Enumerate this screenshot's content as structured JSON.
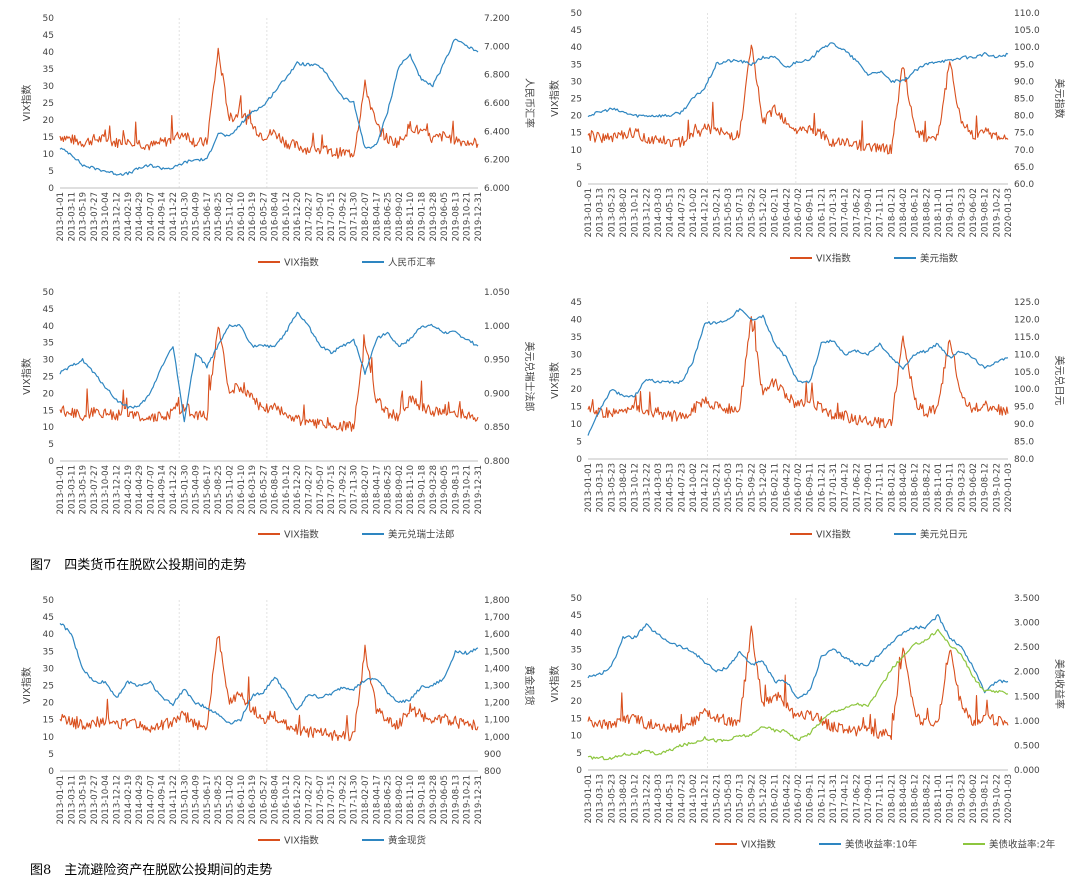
{
  "colors": {
    "vix": "#d9501e",
    "blue": "#2e86c1",
    "green": "#8dc63f",
    "axis": "#bfbfbf",
    "text": "#444444"
  },
  "captions": {
    "fig7": "图7　四类货币在脱欧公投期间的走势",
    "fig8": "图8　主流避险资产在脱欧公投期间的走势"
  },
  "chart_data": [
    {
      "id": "c1",
      "type": "line",
      "xlabel": "",
      "ylabel_left": "VIX指数",
      "ylabel_right": "人民币汇率",
      "ylim_left": [
        0,
        50
      ],
      "yticks_left": [
        "0",
        "5",
        "10",
        "15",
        "20",
        "25",
        "30",
        "35",
        "40",
        "45",
        "50"
      ],
      "ylim_right": [
        6.0,
        7.2
      ],
      "yticks_right": [
        "6.000",
        "6.200",
        "6.400",
        "6.600",
        "6.800",
        "7.000",
        "7.200"
      ],
      "dates": [
        "2013-01-01",
        "2013-03-11",
        "2013-05-19",
        "2013-07-27",
        "2013-10-04",
        "2013-12-12",
        "2014-02-19",
        "2014-04-29",
        "2014-07-07",
        "2014-09-14",
        "2014-11-22",
        "2015-01-30",
        "2015-04-09",
        "2015-06-17",
        "2015-08-25",
        "2015-11-02",
        "2016-01-10",
        "2016-03-19",
        "2016-05-27",
        "2016-08-04",
        "2016-10-12",
        "2016-12-20",
        "2017-02-27",
        "2017-05-07",
        "2017-07-15",
        "2017-09-22",
        "2017-11-30",
        "2018-02-07",
        "2018-04-17",
        "2018-06-25",
        "2018-09-02",
        "2018-11-10",
        "2019-01-18",
        "2019-03-28",
        "2019-06-05",
        "2019-08-13",
        "2019-10-21",
        "2019-12-31"
      ],
      "series": [
        {
          "name": "VIX指数",
          "axis": "left",
          "color": "vix",
          "values": [
            15,
            14,
            13,
            14,
            14,
            13,
            14,
            13,
            12,
            13,
            14,
            16,
            13,
            13,
            40,
            20,
            22,
            18,
            15,
            16,
            13,
            12,
            11,
            11,
            10,
            10,
            10,
            30,
            18,
            14,
            13,
            18,
            16,
            14,
            15,
            14,
            13,
            13
          ]
        },
        {
          "name": "人民币汇率",
          "axis": "right",
          "color": "blue",
          "values": [
            6.28,
            6.24,
            6.16,
            6.14,
            6.12,
            6.1,
            6.1,
            6.14,
            6.16,
            6.14,
            6.14,
            6.18,
            6.2,
            6.2,
            6.39,
            6.36,
            6.45,
            6.54,
            6.58,
            6.68,
            6.78,
            6.88,
            6.87,
            6.86,
            6.76,
            6.64,
            6.6,
            6.28,
            6.3,
            6.54,
            6.86,
            6.94,
            6.76,
            6.72,
            6.88,
            7.06,
            7.0,
            6.96
          ]
        }
      ],
      "legend": [
        "VIX指数",
        "人民币汇率"
      ]
    },
    {
      "id": "c2",
      "type": "line",
      "ylabel_left": "VIX指数",
      "ylabel_right": "美元指数",
      "ylim_left": [
        0,
        50
      ],
      "yticks_left": [
        "0",
        "5",
        "10",
        "15",
        "20",
        "25",
        "30",
        "35",
        "40",
        "45",
        "50"
      ],
      "ylim_right": [
        60,
        110
      ],
      "yticks_right": [
        "60.0",
        "65.0",
        "70.0",
        "75.0",
        "80.0",
        "85.0",
        "90.0",
        "95.0",
        "100.0",
        "105.0",
        "110.0"
      ],
      "dates": [
        "2013-01-01",
        "2013-03-13",
        "2013-05-23",
        "2013-08-02",
        "2013-10-12",
        "2013-12-22",
        "2014-03-03",
        "2014-05-13",
        "2014-07-23",
        "2014-10-02",
        "2014-12-12",
        "2015-02-21",
        "2015-05-03",
        "2015-07-13",
        "2015-09-22",
        "2015-12-02",
        "2016-02-11",
        "2016-04-22",
        "2016-07-02",
        "2016-09-11",
        "2016-11-21",
        "2017-01-31",
        "2017-04-12",
        "2017-06-22",
        "2017-09-01",
        "2017-11-11",
        "2018-01-21",
        "2018-04-02",
        "2018-06-12",
        "2018-08-22",
        "2018-11-01",
        "2019-01-11",
        "2019-03-23",
        "2019-06-02",
        "2019-08-12",
        "2019-10-22",
        "2020-01-03"
      ],
      "series": [
        {
          "name": "VIX指数",
          "axis": "left",
          "color": "vix",
          "values": [
            14,
            13,
            13,
            14,
            15,
            13,
            13,
            12,
            12,
            14,
            16,
            15,
            14,
            14,
            40,
            18,
            22,
            18,
            15,
            16,
            14,
            12,
            12,
            11,
            11,
            10,
            10,
            35,
            16,
            13,
            14,
            35,
            18,
            14,
            15,
            14,
            13
          ]
        },
        {
          "name": "美元指数",
          "axis": "right",
          "color": "blue",
          "values": [
            80,
            81,
            82,
            81,
            80,
            80,
            80,
            80,
            81,
            85,
            88,
            95,
            96,
            96,
            95,
            97,
            97,
            94,
            96,
            96,
            100,
            101,
            99,
            96,
            92,
            93,
            90,
            90,
            93,
            95,
            96,
            96,
            97,
            97,
            98,
            97,
            98
          ]
        }
      ],
      "legend": [
        "VIX指数",
        "美元指数"
      ]
    },
    {
      "id": "c3",
      "type": "line",
      "ylabel_left": "VIX指数",
      "ylabel_right": "美元兑瑞士法郎",
      "ylim_left": [
        0,
        50
      ],
      "yticks_left": [
        "0",
        "5",
        "10",
        "15",
        "20",
        "25",
        "30",
        "35",
        "40",
        "45",
        "50"
      ],
      "ylim_right": [
        0.8,
        1.05
      ],
      "yticks_right": [
        "0.800",
        "0.850",
        "0.900",
        "0.950",
        "1.000",
        "1.050"
      ],
      "dates": [
        "2013-01-01",
        "2013-03-11",
        "2013-05-19",
        "2013-07-27",
        "2013-10-04",
        "2013-12-12",
        "2014-02-19",
        "2014-04-29",
        "2014-07-07",
        "2014-09-14",
        "2014-11-22",
        "2015-01-30",
        "2015-04-09",
        "2015-06-17",
        "2015-08-25",
        "2015-11-02",
        "2016-01-10",
        "2016-03-19",
        "2016-05-27",
        "2016-08-04",
        "2016-10-12",
        "2016-12-20",
        "2017-02-27",
        "2017-05-07",
        "2017-07-15",
        "2017-09-22",
        "2017-11-30",
        "2018-02-07",
        "2018-04-17",
        "2018-06-25",
        "2018-09-02",
        "2018-11-10",
        "2019-01-18",
        "2019-03-28",
        "2019-06-05",
        "2019-08-13",
        "2019-10-21",
        "2019-12-31"
      ],
      "series": [
        {
          "name": "VIX指数",
          "axis": "left",
          "color": "vix",
          "values": [
            15,
            14,
            13,
            14,
            14,
            13,
            14,
            13,
            12,
            13,
            14,
            16,
            13,
            13,
            40,
            20,
            22,
            18,
            15,
            16,
            13,
            12,
            11,
            11,
            10,
            10,
            10,
            35,
            18,
            14,
            13,
            18,
            16,
            14,
            15,
            14,
            13,
            13
          ]
        },
        {
          "name": "美元兑瑞士法郎",
          "axis": "right",
          "color": "blue",
          "values": [
            0.93,
            0.94,
            0.95,
            0.93,
            0.91,
            0.89,
            0.88,
            0.88,
            0.9,
            0.94,
            0.97,
            0.86,
            0.96,
            0.94,
            0.97,
            1.0,
            1.0,
            0.97,
            0.97,
            0.97,
            0.99,
            1.02,
            1.0,
            0.97,
            0.96,
            0.97,
            0.98,
            0.93,
            0.98,
            0.99,
            0.97,
            0.98,
            1.0,
            1.0,
            0.99,
            0.99,
            0.98,
            0.97
          ]
        }
      ],
      "legend": [
        "VIX指数",
        "美元兑瑞士法郎"
      ]
    },
    {
      "id": "c4",
      "type": "line",
      "ylabel_left": "VIX指数",
      "ylabel_right": "美元兑日元",
      "ylim_left": [
        0,
        45
      ],
      "yticks_left": [
        "0",
        "5",
        "10",
        "15",
        "20",
        "25",
        "30",
        "35",
        "40",
        "45"
      ],
      "ylim_right": [
        80,
        125
      ],
      "yticks_right": [
        "80.0",
        "85.0",
        "90.0",
        "95.0",
        "100.0",
        "105.0",
        "110.0",
        "115.0",
        "120.0",
        "125.0"
      ],
      "dates": [
        "2013-01-01",
        "2013-03-13",
        "2013-05-23",
        "2013-08-02",
        "2013-10-12",
        "2013-12-22",
        "2014-03-03",
        "2014-05-13",
        "2014-07-23",
        "2014-10-02",
        "2014-12-12",
        "2015-02-21",
        "2015-05-03",
        "2015-07-13",
        "2015-09-22",
        "2015-12-02",
        "2016-02-11",
        "2016-04-22",
        "2016-07-02",
        "2016-09-11",
        "2016-11-21",
        "2017-01-31",
        "2017-04-12",
        "2017-06-22",
        "2017-09-01",
        "2017-11-11",
        "2018-01-21",
        "2018-04-02",
        "2018-06-12",
        "2018-08-22",
        "2018-11-01",
        "2019-01-11",
        "2019-03-23",
        "2019-06-02",
        "2019-08-12",
        "2019-10-22",
        "2020-01-03"
      ],
      "series": [
        {
          "name": "VIX指数",
          "axis": "left",
          "color": "vix",
          "values": [
            14,
            13,
            13,
            14,
            15,
            13,
            13,
            12,
            12,
            14,
            16,
            15,
            14,
            14,
            40,
            18,
            22,
            18,
            15,
            16,
            14,
            12,
            12,
            11,
            11,
            10,
            10,
            35,
            16,
            13,
            14,
            35,
            18,
            14,
            15,
            14,
            13
          ]
        },
        {
          "name": "美元兑日元",
          "axis": "right",
          "color": "blue",
          "values": [
            87,
            94,
            100,
            98,
            98,
            103,
            102,
            102,
            102,
            108,
            119,
            119,
            120,
            123,
            120,
            121,
            113,
            109,
            102,
            102,
            113,
            114,
            110,
            111,
            110,
            113,
            109,
            106,
            110,
            111,
            113,
            109,
            111,
            109,
            106,
            108,
            109
          ]
        }
      ],
      "legend": [
        "VIX指数",
        "美元兑日元"
      ]
    },
    {
      "id": "c5",
      "type": "line",
      "ylabel_left": "VIX指数",
      "ylabel_right": "黄金现货",
      "ylim_left": [
        0,
        50
      ],
      "yticks_left": [
        "0",
        "5",
        "10",
        "15",
        "20",
        "25",
        "30",
        "35",
        "40",
        "45",
        "50"
      ],
      "ylim_right": [
        800,
        1800
      ],
      "yticks_right": [
        "800",
        "900",
        "1,000",
        "1,100",
        "1,200",
        "1,300",
        "1,400",
        "1,500",
        "1,600",
        "1,700",
        "1,800"
      ],
      "dates": [
        "2013-01-01",
        "2013-03-11",
        "2013-05-19",
        "2013-07-27",
        "2013-10-04",
        "2013-12-12",
        "2014-02-19",
        "2014-04-29",
        "2014-07-07",
        "2014-09-14",
        "2014-11-22",
        "2015-01-30",
        "2015-04-09",
        "2015-06-17",
        "2015-08-25",
        "2015-11-02",
        "2016-01-10",
        "2016-03-19",
        "2016-05-27",
        "2016-08-04",
        "2016-10-12",
        "2016-12-20",
        "2017-02-27",
        "2017-05-07",
        "2017-07-15",
        "2017-09-22",
        "2017-11-30",
        "2018-02-07",
        "2018-04-17",
        "2018-06-25",
        "2018-09-02",
        "2018-11-10",
        "2019-01-18",
        "2019-03-28",
        "2019-06-05",
        "2019-08-13",
        "2019-10-21",
        "2019-12-31"
      ],
      "series": [
        {
          "name": "VIX指数",
          "axis": "left",
          "color": "vix",
          "values": [
            15,
            14,
            13,
            14,
            14,
            13,
            14,
            13,
            12,
            13,
            14,
            16,
            13,
            13,
            40,
            20,
            22,
            18,
            15,
            16,
            13,
            12,
            11,
            11,
            10,
            10,
            10,
            35,
            18,
            14,
            13,
            18,
            16,
            14,
            15,
            14,
            13,
            13
          ]
        },
        {
          "name": "黄金现货",
          "axis": "right",
          "color": "blue",
          "values": [
            1670,
            1600,
            1400,
            1320,
            1320,
            1230,
            1320,
            1300,
            1320,
            1230,
            1190,
            1280,
            1200,
            1170,
            1130,
            1080,
            1100,
            1240,
            1260,
            1350,
            1260,
            1150,
            1250,
            1230,
            1250,
            1290,
            1280,
            1330,
            1340,
            1260,
            1200,
            1220,
            1290,
            1300,
            1340,
            1500,
            1490,
            1520
          ]
        }
      ],
      "legend": [
        "VIX指数",
        "黄金现货"
      ]
    },
    {
      "id": "c6",
      "type": "line",
      "ylabel_left": "VIX指数",
      "ylabel_right": "美债收益率",
      "ylim_left": [
        0,
        50
      ],
      "yticks_left": [
        "0",
        "5",
        "10",
        "15",
        "20",
        "25",
        "30",
        "35",
        "40",
        "45",
        "50"
      ],
      "ylim_right": [
        0,
        3.5
      ],
      "yticks_right": [
        "0.000",
        "0.500",
        "1.000",
        "1.500",
        "2.000",
        "2.500",
        "3.000",
        "3.500"
      ],
      "dates": [
        "2013-01-01",
        "2013-03-13",
        "2013-05-23",
        "2013-08-02",
        "2013-10-12",
        "2013-12-22",
        "2014-03-03",
        "2014-05-13",
        "2014-07-23",
        "2014-10-02",
        "2014-12-12",
        "2015-02-21",
        "2015-05-03",
        "2015-07-13",
        "2015-09-22",
        "2015-12-02",
        "2016-02-11",
        "2016-04-22",
        "2016-07-02",
        "2016-09-11",
        "2016-11-21",
        "2017-01-31",
        "2017-04-12",
        "2017-06-22",
        "2017-09-01",
        "2017-11-11",
        "2018-01-21",
        "2018-04-02",
        "2018-06-12",
        "2018-08-22",
        "2018-11-01",
        "2019-01-11",
        "2019-03-23",
        "2019-06-02",
        "2019-08-12",
        "2019-10-22",
        "2020-01-03"
      ],
      "series": [
        {
          "name": "VIX指数",
          "axis": "left",
          "color": "vix",
          "values": [
            14,
            13,
            13,
            14,
            15,
            13,
            13,
            12,
            12,
            14,
            16,
            15,
            14,
            14,
            40,
            18,
            22,
            18,
            15,
            16,
            14,
            12,
            12,
            11,
            11,
            10,
            10,
            35,
            16,
            13,
            14,
            35,
            18,
            14,
            15,
            14,
            13
          ]
        },
        {
          "name": "美债收益率:10年",
          "axis": "right",
          "color": "blue",
          "values": [
            1.9,
            1.95,
            2.1,
            2.7,
            2.7,
            2.95,
            2.75,
            2.6,
            2.5,
            2.4,
            2.2,
            2.0,
            2.1,
            2.4,
            2.15,
            2.2,
            1.8,
            1.8,
            1.45,
            1.6,
            2.3,
            2.45,
            2.3,
            2.15,
            2.15,
            2.35,
            2.6,
            2.8,
            2.9,
            2.9,
            3.15,
            2.7,
            2.5,
            2.1,
            1.6,
            1.8,
            1.8
          ]
        },
        {
          "name": "美债收益率:2年",
          "axis": "right",
          "color": "green",
          "values": [
            0.25,
            0.25,
            0.23,
            0.32,
            0.33,
            0.38,
            0.32,
            0.4,
            0.5,
            0.55,
            0.65,
            0.6,
            0.6,
            0.7,
            0.7,
            0.9,
            0.8,
            0.8,
            0.6,
            0.75,
            1.0,
            1.2,
            1.25,
            1.35,
            1.3,
            1.65,
            2.05,
            2.3,
            2.55,
            2.65,
            2.85,
            2.55,
            2.35,
            1.9,
            1.6,
            1.6,
            1.55
          ]
        }
      ],
      "legend": [
        "VIX指数",
        "美债收益率:10年",
        "美债收益率:2年"
      ]
    }
  ]
}
